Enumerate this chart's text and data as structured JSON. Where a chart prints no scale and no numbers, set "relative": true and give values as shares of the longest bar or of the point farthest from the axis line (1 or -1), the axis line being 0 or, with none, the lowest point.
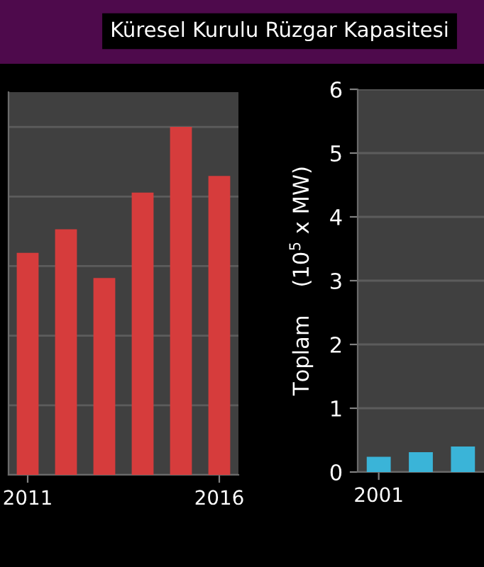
{
  "chart_data": [
    {
      "type": "bar",
      "title": "Küresel Kurulu Rüzgar Kapasitesi",
      "categories": [
        "2011",
        null,
        null,
        null,
        null,
        "2016"
      ],
      "values": [
        0.638,
        0.706,
        0.566,
        0.811,
        1,
        0.859
      ],
      "color": "#d63c3c",
      "relative": true,
      "grid": "y"
    },
    {
      "type": "bar",
      "ylabel": "Toplam    (10$^{5}$ x MW)",
      "categories": [
        "2001",
        null,
        null
      ],
      "values": [
        0.24,
        0.31,
        0.4
      ],
      "color": "#3ab4d8",
      "ylim": [
        0,
        6
      ],
      "yticks": [
        0,
        1,
        2,
        3,
        4,
        5,
        6
      ],
      "grid": "y"
    }
  ]
}
